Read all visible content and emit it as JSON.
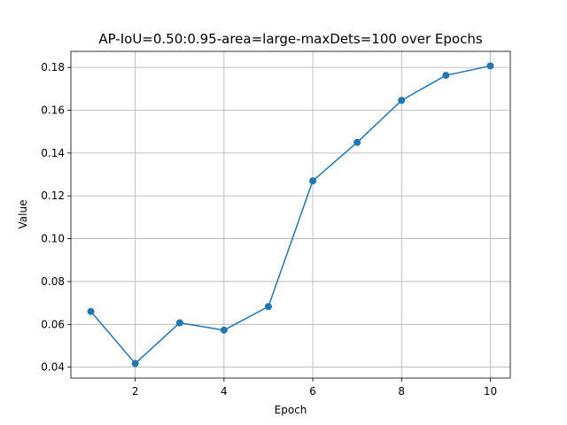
{
  "chart_data": {
    "type": "line",
    "title": "AP-IoU=0.50:0.95-area=large-maxDets=100 over Epochs",
    "xlabel": "Epoch",
    "ylabel": "Value",
    "xlim": [
      0.55,
      10.45
    ],
    "ylim": [
      0.0349,
      0.1875
    ],
    "xticks": [
      2,
      4,
      6,
      8,
      10
    ],
    "xtick_labels": [
      "2",
      "4",
      "6",
      "8",
      "10"
    ],
    "yticks": [
      0.04,
      0.06,
      0.08,
      0.1,
      0.12,
      0.14,
      0.16,
      0.18
    ],
    "ytick_labels": [
      "0.04",
      "0.06",
      "0.08",
      "0.10",
      "0.12",
      "0.14",
      "0.16",
      "0.18"
    ],
    "grid": true,
    "series": [
      {
        "x": [
          1,
          2,
          3,
          4,
          5,
          6,
          7,
          8,
          9,
          10
        ],
        "values": [
          0.066,
          0.0417,
          0.0607,
          0.0573,
          0.0683,
          0.127,
          0.145,
          0.1646,
          0.1763,
          0.1807
        ],
        "color": "#1f77b4",
        "marker": "circle"
      }
    ]
  }
}
